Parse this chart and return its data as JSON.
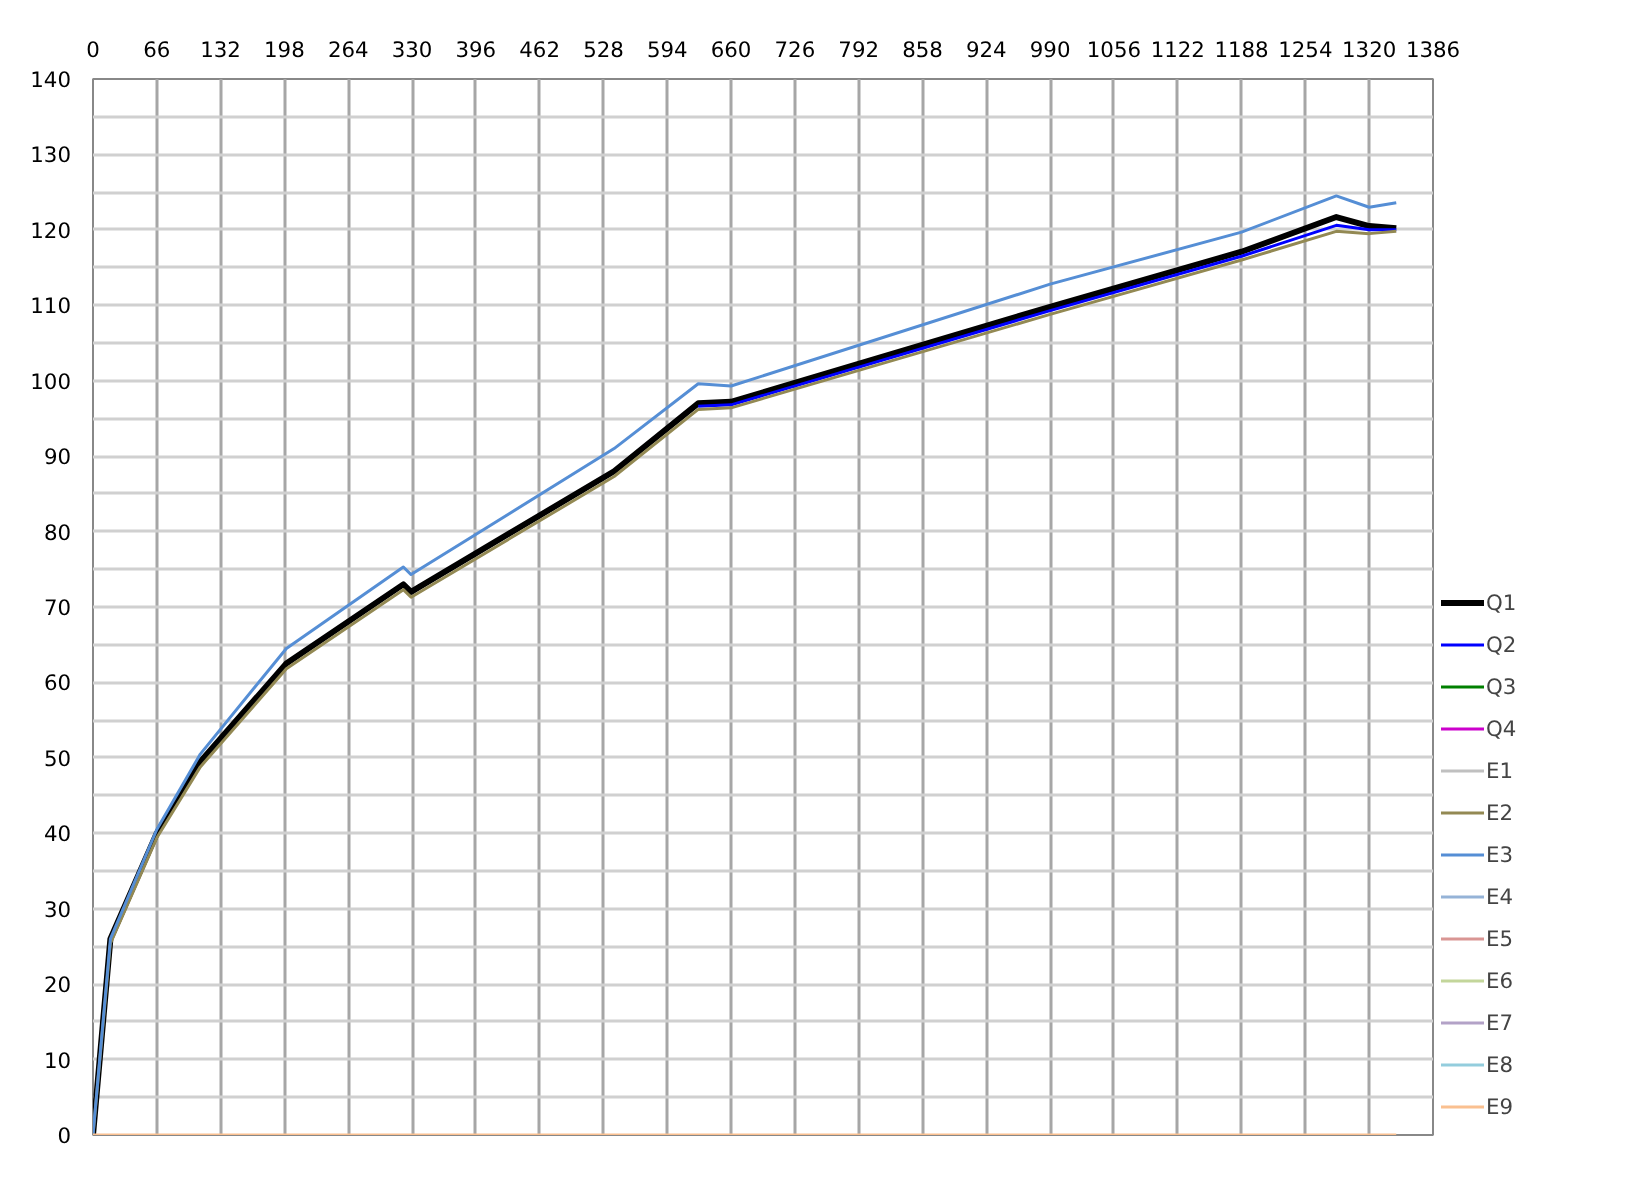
{
  "chart_data": {
    "type": "line",
    "x": [
      0,
      18,
      66,
      111,
      200,
      321,
      329,
      539,
      626,
      660,
      990,
      1188,
      1286,
      1320,
      1348
    ],
    "xlim": [
      0,
      1386
    ],
    "xticks": [
      0,
      66,
      132,
      198,
      264,
      330,
      396,
      462,
      528,
      594,
      660,
      726,
      792,
      858,
      924,
      990,
      1056,
      1122,
      1188,
      1254,
      1320,
      1386
    ],
    "ylim": [
      0,
      140
    ],
    "yticks": [
      0,
      10,
      20,
      30,
      40,
      50,
      60,
      70,
      80,
      90,
      100,
      110,
      120,
      130,
      140
    ],
    "grid": true,
    "legend": "right",
    "marker": "none",
    "line_style": "solid",
    "series": [
      {
        "name": "Q1",
        "color": "#000000",
        "values": [
          0,
          26,
          40,
          49.5,
          62.5,
          73,
          72,
          88,
          97,
          97.2,
          109.8,
          117.1,
          121.7,
          120.5,
          120.2
        ]
      },
      {
        "name": "Q2",
        "color": "#0000ff",
        "values": [
          null,
          null,
          null,
          null,
          null,
          null,
          null,
          null,
          96.6,
          96.8,
          109.3,
          116.5,
          120.6,
          120,
          120
        ]
      },
      {
        "name": "Q3",
        "color": "#008000",
        "values": [
          null,
          null,
          null,
          null,
          null,
          null,
          null,
          null,
          null,
          null,
          null,
          null,
          null,
          null,
          null
        ]
      },
      {
        "name": "Q4",
        "color": "#cc00cc",
        "values": [
          null,
          null,
          null,
          null,
          null,
          null,
          null,
          null,
          null,
          null,
          null,
          null,
          null,
          null,
          null
        ]
      },
      {
        "name": "E1",
        "color": "#c0c0c0",
        "values": [
          null,
          null,
          null,
          null,
          null,
          null,
          null,
          null,
          null,
          null,
          null,
          null,
          null,
          null,
          null
        ]
      },
      {
        "name": "E2",
        "color": "#938953",
        "values": [
          0,
          25.4,
          39.4,
          48.8,
          61.8,
          72.3,
          71.3,
          87.3,
          96.2,
          96.4,
          108.8,
          116,
          119.8,
          119.5,
          119.8
        ]
      },
      {
        "name": "E3",
        "color": "#558ed5",
        "values": [
          0,
          26,
          40.5,
          50.5,
          64.5,
          75.3,
          74.3,
          91,
          99.6,
          99.3,
          112.8,
          119.7,
          124.5,
          123,
          123.6
        ]
      },
      {
        "name": "E4",
        "color": "#95b3d7",
        "values": [
          null,
          null,
          null,
          null,
          null,
          null,
          null,
          null,
          null,
          null,
          null,
          null,
          null,
          null,
          null
        ]
      },
      {
        "name": "E5",
        "color": "#d99694",
        "values": [
          null,
          null,
          null,
          null,
          null,
          null,
          null,
          null,
          null,
          null,
          null,
          null,
          null,
          null,
          null
        ]
      },
      {
        "name": "E6",
        "color": "#c3d69b",
        "values": [
          null,
          null,
          null,
          null,
          null,
          null,
          null,
          null,
          null,
          null,
          null,
          null,
          null,
          null,
          null
        ]
      },
      {
        "name": "E7",
        "color": "#b3a2c7",
        "values": [
          null,
          null,
          null,
          null,
          null,
          null,
          null,
          null,
          null,
          null,
          null,
          null,
          null,
          null,
          null
        ]
      },
      {
        "name": "E8",
        "color": "#93cddd",
        "values": [
          null,
          null,
          null,
          null,
          null,
          null,
          null,
          null,
          null,
          null,
          null,
          null,
          null,
          null,
          null
        ]
      },
      {
        "name": "E9",
        "color": "#fac090",
        "values": [
          0,
          0,
          0,
          0,
          0,
          0,
          0,
          0,
          0,
          0,
          0,
          0,
          0,
          0,
          0
        ]
      }
    ]
  }
}
